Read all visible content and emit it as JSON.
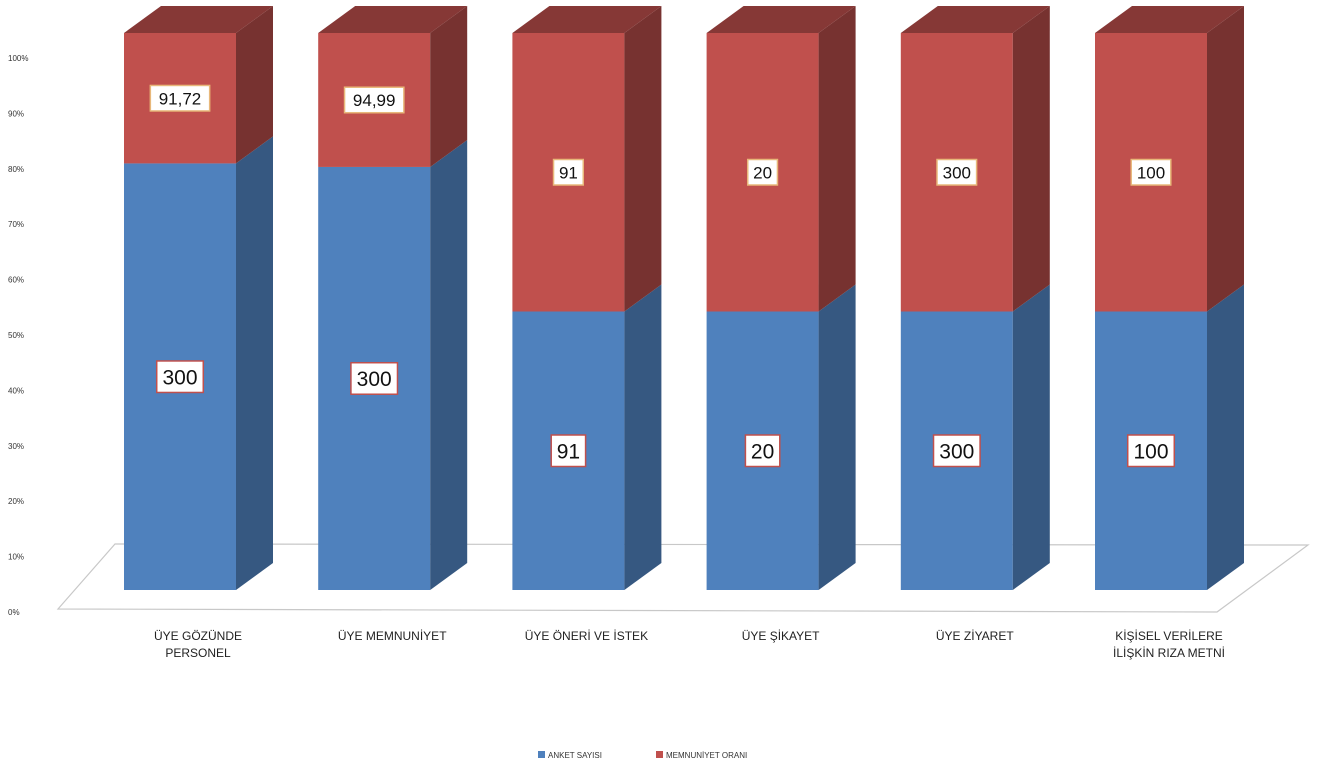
{
  "chart_data": {
    "type": "bar",
    "stacked": "percent",
    "three_d": true,
    "categories": [
      [
        "ÜYE GÖZÜNDE",
        "PERSONEL"
      ],
      [
        "ÜYE MEMNUNİYET"
      ],
      [
        "ÜYE ÖNERİ VE İSTEK"
      ],
      [
        "ÜYE ŞİKAYET"
      ],
      [
        "ÜYE ZİYARET"
      ],
      [
        "KİŞİSEL VERİLERE",
        "İLİŞKİN RIZA METNİ"
      ]
    ],
    "series": [
      {
        "name": "ANKET SAYISI",
        "color": "#4f81bd",
        "values": [
          300,
          300,
          91,
          20,
          300,
          100
        ],
        "labels": [
          "300",
          "300",
          "91",
          "20",
          "300",
          "100"
        ]
      },
      {
        "name": "MEMNUNİYET ORANI",
        "color": "#c0504d",
        "values": [
          91.72,
          94.99,
          91,
          20,
          300,
          100
        ],
        "labels": [
          "91,72",
          "94,99",
          "91",
          "20",
          "300",
          "100"
        ]
      }
    ],
    "y_ticks": [
      "0%",
      "10%",
      "20%",
      "30%",
      "40%",
      "50%",
      "60%",
      "70%",
      "80%",
      "90%",
      "100%"
    ],
    "ylim": [
      0,
      100
    ],
    "grid": false,
    "legend": "bottom",
    "title": "",
    "xlabel": "",
    "ylabel": ""
  }
}
